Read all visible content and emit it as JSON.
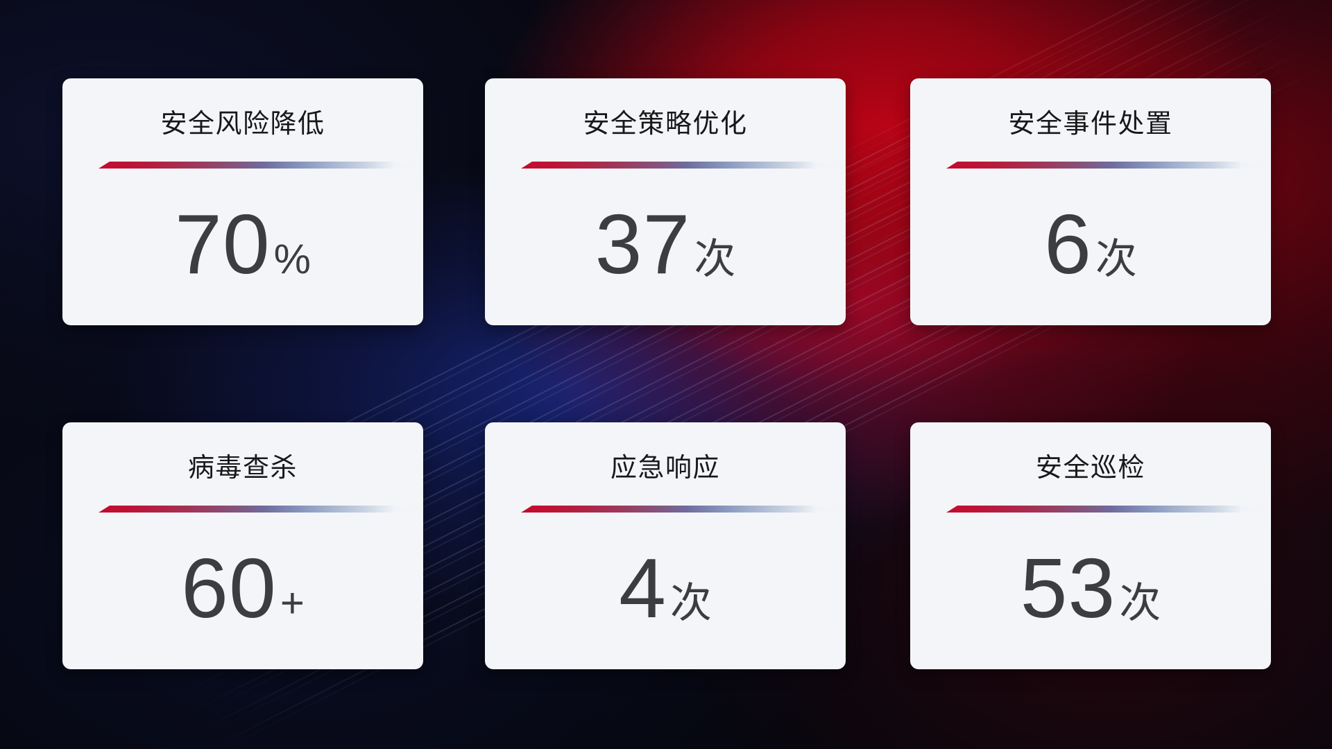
{
  "cards": [
    {
      "title": "安全风险降低",
      "value": "70",
      "unit": "%"
    },
    {
      "title": "安全策略优化",
      "value": "37",
      "unit": "次"
    },
    {
      "title": "安全事件处置",
      "value": "6",
      "unit": "次"
    },
    {
      "title": "病毒查杀",
      "value": "60",
      "unit": "+"
    },
    {
      "title": "应急响应",
      "value": "4",
      "unit": "次"
    },
    {
      "title": "安全巡检",
      "value": "53",
      "unit": "次"
    }
  ],
  "colors": {
    "accent_red": "#c40b2d",
    "divider_end_blue": "#c9d3e2",
    "card_background": "#f4f5f8",
    "number_text": "#3b3d41",
    "title_text": "#17181a",
    "background_blue_glow": "#18267a",
    "background_red_glow": "#be0416"
  },
  "chart_data": {
    "type": "table",
    "title": "",
    "categories": [
      "安全风险降低",
      "安全策略优化",
      "安全事件处置",
      "病毒查杀",
      "应急响应",
      "安全巡检"
    ],
    "values": [
      70,
      37,
      6,
      60,
      4,
      53
    ],
    "units": [
      "%",
      "次",
      "次",
      "+",
      "次",
      "次"
    ]
  }
}
